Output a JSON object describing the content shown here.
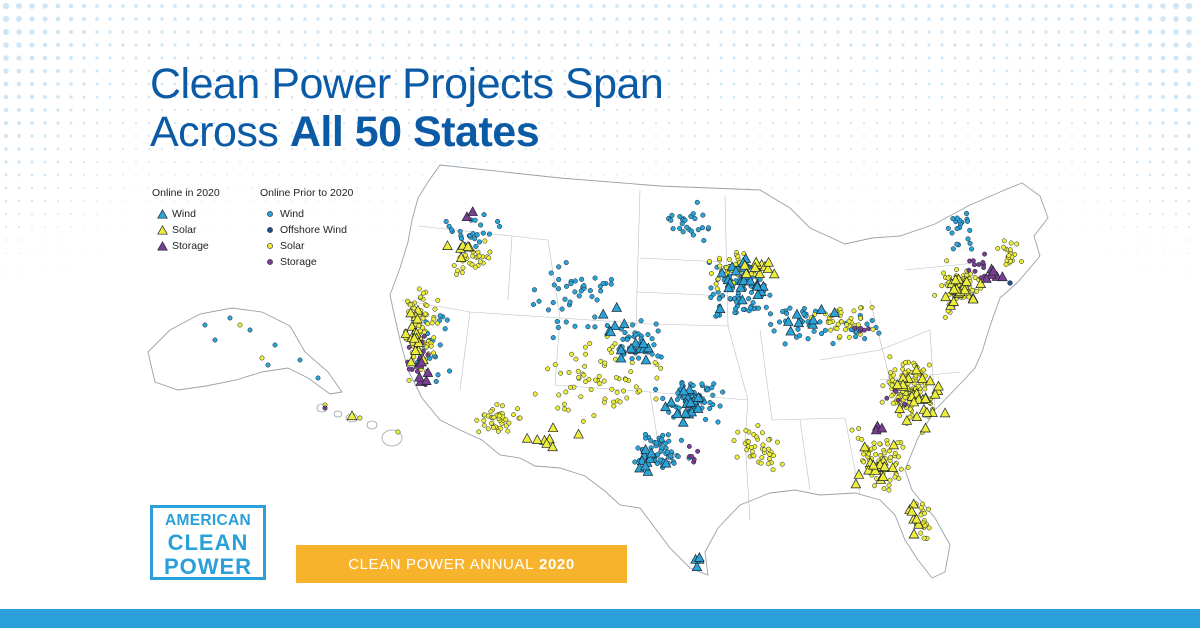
{
  "headline": {
    "line1": "Clean Power Projects Span",
    "line2_prefix": "Across ",
    "line2_bold": "All 50 States"
  },
  "legend": {
    "online_2020": {
      "title": "Online in 2020",
      "items": [
        "Wind",
        "Solar",
        "Storage"
      ]
    },
    "online_prior": {
      "title": "Online Prior to 2020",
      "items": [
        "Wind",
        "Offshore Wind",
        "Solar",
        "Storage"
      ]
    }
  },
  "colors": {
    "headline": "#0b5aa6",
    "wind": "#2aa3d6",
    "offshore_wind": "#1d4f91",
    "solar": "#eded3a",
    "storage": "#7b3f91",
    "brand_blue": "#2a9fd8",
    "banner": "#f7b32b"
  },
  "logo": {
    "line1": "AMERICAN",
    "line2": "CLEAN",
    "line3": "POWER"
  },
  "banner": {
    "prefix": "CLEAN POWER ANNUAL",
    "year": "2020"
  }
}
